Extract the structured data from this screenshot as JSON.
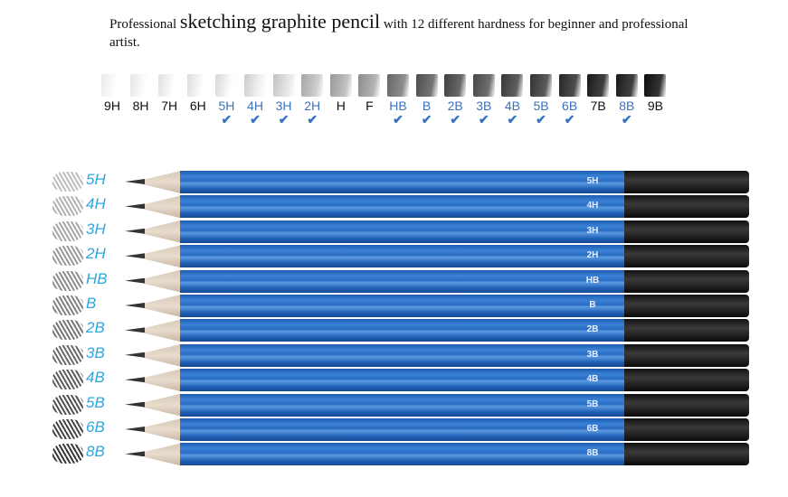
{
  "title": {
    "pre": "Professional ",
    "emph": "sketching graphite pencil",
    "post": " with 12 different hardness for beginner and professional artist."
  },
  "scale": [
    {
      "grade": "9H",
      "included": false,
      "shade": 0.08
    },
    {
      "grade": "8H",
      "included": false,
      "shade": 0.1
    },
    {
      "grade": "7H",
      "included": false,
      "shade": 0.12
    },
    {
      "grade": "6H",
      "included": false,
      "shade": 0.14
    },
    {
      "grade": "5H",
      "included": true,
      "shade": 0.16
    },
    {
      "grade": "4H",
      "included": true,
      "shade": 0.2
    },
    {
      "grade": "3H",
      "included": true,
      "shade": 0.24
    },
    {
      "grade": "2H",
      "included": true,
      "shade": 0.35
    },
    {
      "grade": "H",
      "included": false,
      "shade": 0.4
    },
    {
      "grade": "F",
      "included": false,
      "shade": 0.45
    },
    {
      "grade": "HB",
      "included": true,
      "shade": 0.6
    },
    {
      "grade": "B",
      "included": true,
      "shade": 0.7
    },
    {
      "grade": "2B",
      "included": true,
      "shade": 0.75
    },
    {
      "grade": "3B",
      "included": true,
      "shade": 0.72
    },
    {
      "grade": "4B",
      "included": true,
      "shade": 0.78
    },
    {
      "grade": "5B",
      "included": true,
      "shade": 0.8
    },
    {
      "grade": "6B",
      "included": true,
      "shade": 0.85
    },
    {
      "grade": "7B",
      "included": false,
      "shade": 0.9
    },
    {
      "grade": "8B",
      "included": true,
      "shade": 0.9
    },
    {
      "grade": "9B",
      "included": false,
      "shade": 0.95
    }
  ],
  "colors": {
    "included_label": "#3a72c0",
    "excluded_label": "#111111",
    "handwritten_label": "#2da7dd",
    "pencil_body": "#2a6cc4",
    "pencil_end": "#111111"
  },
  "pencils": [
    "5H",
    "4H",
    "3H",
    "2H",
    "HB",
    "B",
    "2B",
    "3B",
    "4B",
    "5B",
    "6B",
    "8B"
  ]
}
